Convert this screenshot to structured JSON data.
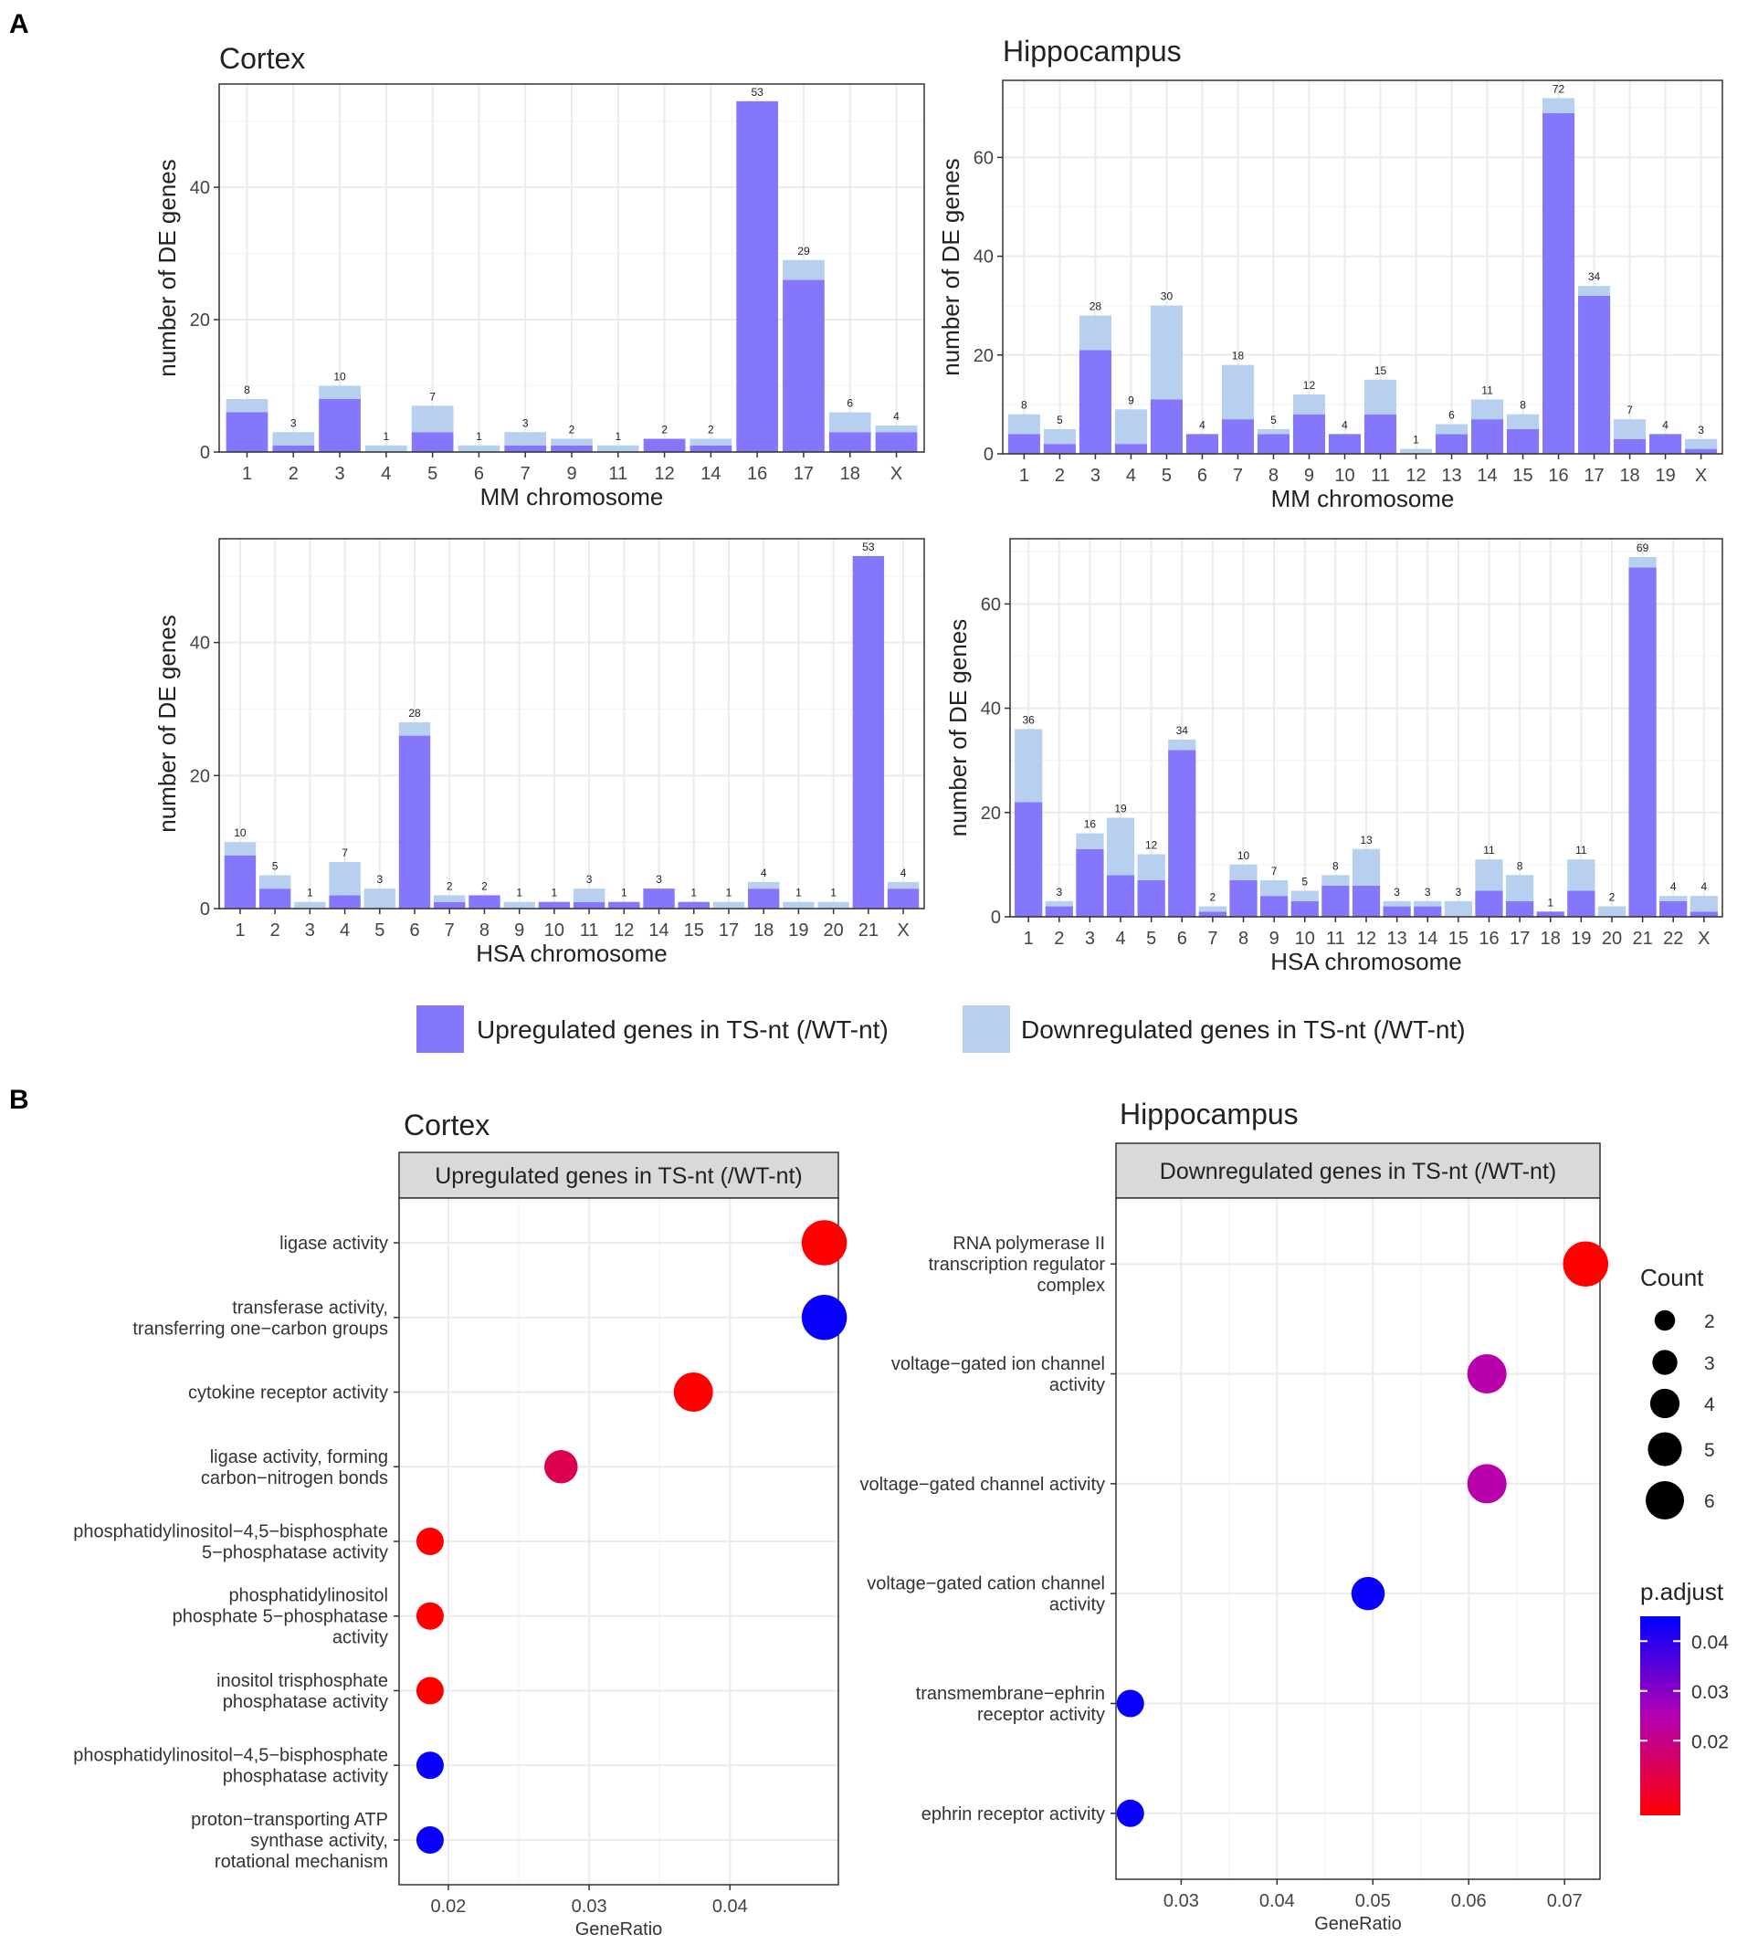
{
  "panel_labels": {
    "a": "A",
    "b": "B"
  },
  "legend": {
    "up_label": "Upregulated genes in TS-nt (/WT-nt)",
    "down_label": "Downregulated genes in TS-nt (/WT-nt)",
    "up_color": "#8577fb",
    "down_color": "#b7d0ef"
  },
  "chart_data": [
    {
      "id": "cortex-mm",
      "type": "bar",
      "stacked": true,
      "title": "Cortex",
      "xlabel": "MM chromosome",
      "ylabel": "number of DE genes",
      "ylim": [
        0,
        55.6
      ],
      "yticks": [
        0,
        20,
        40
      ],
      "categories": [
        "1",
        "2",
        "3",
        "4",
        "5",
        "6",
        "7",
        "9",
        "11",
        "12",
        "14",
        "16",
        "17",
        "18",
        "X"
      ],
      "series": [
        {
          "name": "Upregulated genes in TS-nt (/WT-nt)",
          "values": [
            6,
            1,
            8,
            0,
            3,
            0,
            1,
            1,
            0,
            2,
            1,
            53,
            26,
            3,
            3
          ]
        },
        {
          "name": "Downregulated genes in TS-nt (/WT-nt)",
          "values": [
            2,
            2,
            2,
            1,
            4,
            1,
            2,
            1,
            1,
            0,
            1,
            0,
            3,
            3,
            1
          ]
        }
      ],
      "totals": [
        8,
        3,
        10,
        1,
        7,
        1,
        3,
        2,
        1,
        2,
        2,
        53,
        29,
        6,
        4
      ]
    },
    {
      "id": "hippo-mm",
      "type": "bar",
      "stacked": true,
      "title": "Hippocampus",
      "xlabel": "MM chromosome",
      "ylabel": "number of DE genes",
      "ylim": [
        0,
        75.6
      ],
      "yticks": [
        0,
        20,
        40,
        60
      ],
      "categories": [
        "1",
        "2",
        "3",
        "4",
        "5",
        "6",
        "7",
        "8",
        "9",
        "10",
        "11",
        "12",
        "13",
        "14",
        "15",
        "16",
        "17",
        "18",
        "19",
        "X"
      ],
      "series": [
        {
          "name": "Upregulated genes in TS-nt (/WT-nt)",
          "values": [
            4,
            2,
            21,
            2,
            11,
            4,
            7,
            4,
            8,
            4,
            8,
            0,
            4,
            7,
            5,
            69,
            32,
            3,
            4,
            1
          ]
        },
        {
          "name": "Downregulated genes in TS-nt (/WT-nt)",
          "values": [
            4,
            3,
            7,
            7,
            19,
            0,
            11,
            1,
            4,
            0,
            7,
            1,
            2,
            4,
            3,
            3,
            2,
            4,
            0,
            2
          ]
        }
      ],
      "totals": [
        8,
        5,
        28,
        9,
        30,
        4,
        18,
        5,
        12,
        4,
        15,
        1,
        6,
        11,
        8,
        72,
        34,
        7,
        4,
        3
      ]
    },
    {
      "id": "cortex-hsa",
      "type": "bar",
      "stacked": true,
      "title": "",
      "xlabel": "HSA chromosome",
      "ylabel": "number of DE genes",
      "ylim": [
        0,
        55.6
      ],
      "yticks": [
        0,
        20,
        40
      ],
      "categories": [
        "1",
        "2",
        "3",
        "4",
        "5",
        "6",
        "7",
        "8",
        "9",
        "10",
        "11",
        "12",
        "14",
        "15",
        "17",
        "18",
        "19",
        "20",
        "21",
        "X"
      ],
      "series": [
        {
          "name": "Upregulated genes in TS-nt (/WT-nt)",
          "values": [
            8,
            3,
            0,
            2,
            0,
            26,
            1,
            2,
            0,
            1,
            1,
            1,
            3,
            1,
            0,
            3,
            0,
            0,
            53,
            3
          ]
        },
        {
          "name": "Downregulated genes in TS-nt (/WT-nt)",
          "values": [
            2,
            2,
            1,
            5,
            3,
            2,
            1,
            0,
            1,
            0,
            2,
            0,
            0,
            0,
            1,
            1,
            1,
            1,
            0,
            1
          ]
        }
      ],
      "totals": [
        10,
        5,
        1,
        7,
        3,
        28,
        2,
        2,
        1,
        1,
        3,
        1,
        3,
        1,
        1,
        4,
        1,
        1,
        53,
        4
      ]
    },
    {
      "id": "hippo-hsa",
      "type": "bar",
      "stacked": true,
      "title": "",
      "xlabel": "HSA chromosome",
      "ylabel": "number of DE genes",
      "ylim": [
        0,
        72.5
      ],
      "yticks": [
        0,
        20,
        40,
        60
      ],
      "categories": [
        "1",
        "2",
        "3",
        "4",
        "5",
        "6",
        "7",
        "8",
        "9",
        "10",
        "11",
        "12",
        "13",
        "14",
        "15",
        "16",
        "17",
        "18",
        "19",
        "20",
        "21",
        "22",
        "X"
      ],
      "series": [
        {
          "name": "Upregulated genes in TS-nt (/WT-nt)",
          "values": [
            22,
            2,
            13,
            8,
            7,
            32,
            1,
            7,
            4,
            3,
            6,
            6,
            2,
            2,
            0,
            5,
            3,
            1,
            5,
            0,
            67,
            3,
            1
          ]
        },
        {
          "name": "Downregulated genes in TS-nt (/WT-nt)",
          "values": [
            14,
            1,
            3,
            11,
            5,
            2,
            1,
            3,
            3,
            2,
            2,
            7,
            1,
            1,
            3,
            6,
            5,
            0,
            6,
            2,
            2,
            1,
            3
          ]
        }
      ],
      "totals": [
        36,
        3,
        16,
        19,
        12,
        34,
        2,
        10,
        7,
        5,
        8,
        13,
        3,
        3,
        3,
        11,
        8,
        1,
        11,
        2,
        69,
        4,
        4
      ]
    },
    {
      "id": "cortex-go",
      "type": "scatter",
      "title": "Cortex",
      "facet": "Upregulated genes in TS-nt (/WT-nt)",
      "xlabel": "GeneRatio",
      "xlim": [
        0.0165,
        0.0477
      ],
      "xticks": [
        0.02,
        0.03,
        0.04
      ],
      "xticklabels": [
        "0.02",
        "0.03",
        "0.04"
      ],
      "terms": [
        {
          "label": [
            "ligase activity"
          ],
          "generatio": 0.0467,
          "count": 5,
          "p_adjust": 0.005
        },
        {
          "label": [
            "transferase activity,",
            "transferring one−carbon groups"
          ],
          "generatio": 0.0467,
          "count": 5,
          "p_adjust": 0.044
        },
        {
          "label": [
            "cytokine receptor activity"
          ],
          "generatio": 0.0374,
          "count": 4,
          "p_adjust": 0.005
        },
        {
          "label": [
            "ligase activity, forming",
            "carbon−nitrogen bonds"
          ],
          "generatio": 0.028,
          "count": 3,
          "p_adjust": 0.014
        },
        {
          "label": [
            "phosphatidylinositol−4,5−bisphosphate",
            "5−phosphatase activity"
          ],
          "generatio": 0.0187,
          "count": 2,
          "p_adjust": 0.005
        },
        {
          "label": [
            "phosphatidylinositol",
            "phosphate 5−phosphatase",
            "activity"
          ],
          "generatio": 0.0187,
          "count": 2,
          "p_adjust": 0.005
        },
        {
          "label": [
            "inositol trisphosphate",
            "phosphatase activity"
          ],
          "generatio": 0.0187,
          "count": 2,
          "p_adjust": 0.005
        },
        {
          "label": [
            "phosphatidylinositol−4,5−bisphosphate",
            "phosphatase activity"
          ],
          "generatio": 0.0187,
          "count": 2,
          "p_adjust": 0.044
        },
        {
          "label": [
            "proton−transporting ATP",
            "synthase activity,",
            "rotational mechanism"
          ],
          "generatio": 0.0187,
          "count": 2,
          "p_adjust": 0.044
        }
      ]
    },
    {
      "id": "hippo-go",
      "type": "scatter",
      "title": "Hippocampus",
      "facet": "Downregulated genes in TS-nt (/WT-nt)",
      "xlabel": "GeneRatio",
      "xlim": [
        0.0232,
        0.0737
      ],
      "xticks": [
        0.03,
        0.04,
        0.05,
        0.06,
        0.07
      ],
      "xticklabels": [
        "0.03",
        "0.04",
        "0.05",
        "0.06",
        "0.07"
      ],
      "terms": [
        {
          "label": [
            "RNA polymerase II",
            "transcription regulator",
            "complex"
          ],
          "generatio": 0.0722,
          "count": 5,
          "p_adjust": 0.005
        },
        {
          "label": [
            "voltage−gated ion channel",
            "activity"
          ],
          "generatio": 0.0619,
          "count": 4,
          "p_adjust": 0.024
        },
        {
          "label": [
            "voltage−gated channel activity"
          ],
          "generatio": 0.0619,
          "count": 4,
          "p_adjust": 0.024
        },
        {
          "label": [
            "voltage−gated cation channel",
            "activity"
          ],
          "generatio": 0.0495,
          "count": 3,
          "p_adjust": 0.044
        },
        {
          "label": [
            "transmembrane−ephrin",
            "receptor activity"
          ],
          "generatio": 0.0247,
          "count": 2,
          "p_adjust": 0.044
        },
        {
          "label": [
            "ephrin receptor activity"
          ],
          "generatio": 0.0247,
          "count": 2,
          "p_adjust": 0.044
        }
      ]
    }
  ],
  "size_legend": {
    "title": "Count",
    "values": [
      2,
      3,
      4,
      5,
      6
    ]
  },
  "color_legend": {
    "title": "p.adjust",
    "ticks": [
      0.04,
      0.03,
      0.02
    ],
    "ticklabels": [
      "0.04",
      "0.03",
      "0.02"
    ],
    "range": [
      0.005,
      0.045
    ],
    "low_color": "#ff0000",
    "high_color": "#0000ff"
  }
}
